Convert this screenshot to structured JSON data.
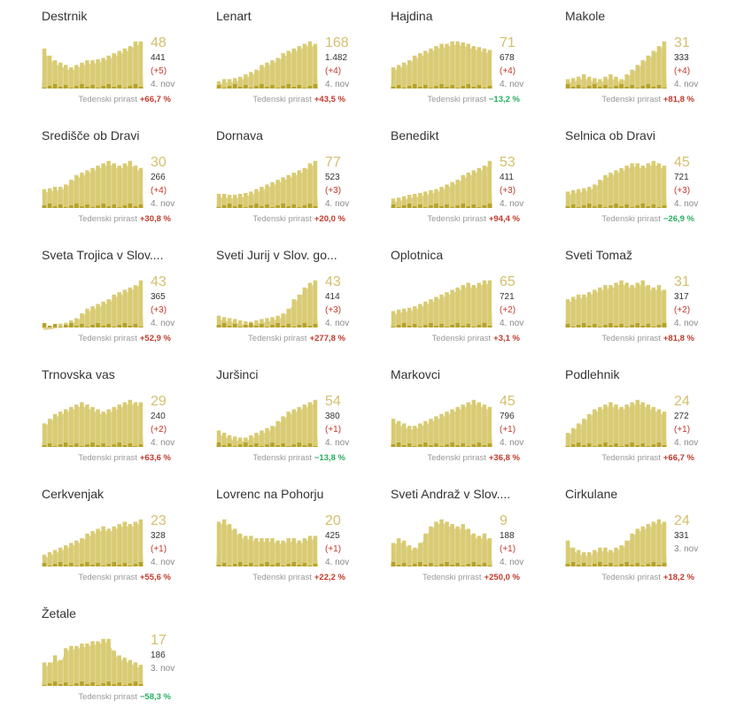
{
  "growth_label": "Tedenski prirast",
  "colors": {
    "area": "#d5c56f",
    "bar": "#d8cb72",
    "newbar": "#b5a22b",
    "up": "#c0392b",
    "down": "#27ae60",
    "big": "#d4bf6e"
  },
  "chart_data": [
    {
      "type": "bar",
      "name": "Destrnik",
      "active": "48",
      "total": "441",
      "delta": "(+5)",
      "date": "4. nov",
      "growth": "+66,7 %",
      "trend": "up",
      "values": [
        0.85,
        0.7,
        0.6,
        0.55,
        0.5,
        0.45,
        0.5,
        0.55,
        0.6,
        0.6,
        0.62,
        0.65,
        0.7,
        0.75,
        0.8,
        0.85,
        0.9,
        1.0,
        1.0
      ]
    },
    {
      "type": "bar",
      "name": "Lenart",
      "active": "168",
      "total": "1.482",
      "delta": "(+4)",
      "date": "4. nov",
      "growth": "+43,5 %",
      "trend": "up",
      "values": [
        0.15,
        0.2,
        0.2,
        0.22,
        0.25,
        0.3,
        0.35,
        0.4,
        0.5,
        0.55,
        0.6,
        0.65,
        0.75,
        0.8,
        0.85,
        0.9,
        0.95,
        1.0,
        0.95
      ]
    },
    {
      "type": "bar",
      "name": "Hajdina",
      "active": "71",
      "total": "678",
      "delta": "(+4)",
      "date": "4. nov",
      "growth": "−13,2 %",
      "trend": "down",
      "values": [
        0.45,
        0.5,
        0.55,
        0.6,
        0.7,
        0.75,
        0.8,
        0.85,
        0.9,
        0.95,
        0.95,
        1.0,
        1.0,
        0.98,
        0.95,
        0.9,
        0.88,
        0.85,
        0.82
      ]
    },
    {
      "type": "bar",
      "name": "Makole",
      "active": "31",
      "total": "333",
      "delta": "(+4)",
      "date": "4. nov",
      "growth": "+81,8 %",
      "trend": "up",
      "values": [
        0.2,
        0.22,
        0.25,
        0.3,
        0.25,
        0.22,
        0.2,
        0.25,
        0.3,
        0.25,
        0.2,
        0.3,
        0.4,
        0.5,
        0.6,
        0.7,
        0.8,
        0.9,
        1.0
      ]
    },
    {
      "type": "bar",
      "name": "Središče ob Dravi",
      "active": "30",
      "total": "266",
      "delta": "(+4)",
      "date": "4. nov",
      "growth": "+30,8 %",
      "trend": "up",
      "values": [
        0.4,
        0.42,
        0.45,
        0.45,
        0.5,
        0.6,
        0.7,
        0.75,
        0.8,
        0.85,
        0.9,
        0.95,
        1.0,
        0.95,
        0.9,
        0.95,
        1.0,
        0.9,
        0.85
      ]
    },
    {
      "type": "bar",
      "name": "Dornava",
      "active": "77",
      "total": "523",
      "delta": "(+3)",
      "date": "4. nov",
      "growth": "+20,0 %",
      "trend": "up",
      "values": [
        0.3,
        0.3,
        0.28,
        0.28,
        0.3,
        0.32,
        0.35,
        0.4,
        0.45,
        0.5,
        0.55,
        0.6,
        0.65,
        0.7,
        0.75,
        0.8,
        0.85,
        0.95,
        1.0
      ]
    },
    {
      "type": "bar",
      "name": "Benedikt",
      "active": "53",
      "total": "411",
      "delta": "(+3)",
      "date": "4. nov",
      "growth": "+94,4 %",
      "trend": "up",
      "values": [
        0.2,
        0.22,
        0.25,
        0.28,
        0.3,
        0.32,
        0.35,
        0.38,
        0.4,
        0.45,
        0.5,
        0.55,
        0.6,
        0.7,
        0.75,
        0.8,
        0.85,
        0.9,
        1.0
      ]
    },
    {
      "type": "bar",
      "name": "Selnica ob Dravi",
      "active": "45",
      "total": "721",
      "delta": "(+3)",
      "date": "4. nov",
      "growth": "−26,9 %",
      "trend": "down",
      "values": [
        0.35,
        0.38,
        0.4,
        0.42,
        0.45,
        0.5,
        0.6,
        0.7,
        0.75,
        0.8,
        0.85,
        0.9,
        0.95,
        0.95,
        0.9,
        0.95,
        1.0,
        0.95,
        0.9
      ]
    },
    {
      "type": "bar",
      "name": "Sveta Trojica v Slov....",
      "active": "43",
      "total": "365",
      "delta": "(+3)",
      "date": "4. nov",
      "growth": "+52,9 %",
      "trend": "up",
      "values": [
        0.02,
        0.03,
        0.05,
        0.08,
        0.1,
        0.15,
        0.2,
        0.3,
        0.4,
        0.45,
        0.5,
        0.55,
        0.6,
        0.7,
        0.75,
        0.8,
        0.85,
        0.9,
        1.0
      ]
    },
    {
      "type": "bar",
      "name": "Sveti Jurij v Slov. go...",
      "active": "43",
      "total": "414",
      "delta": "(+3)",
      "date": "4. nov",
      "growth": "+277,8 %",
      "trend": "up",
      "values": [
        0.25,
        0.22,
        0.2,
        0.18,
        0.15,
        0.13,
        0.12,
        0.15,
        0.18,
        0.2,
        0.22,
        0.25,
        0.3,
        0.4,
        0.6,
        0.7,
        0.85,
        0.95,
        1.0
      ]
    },
    {
      "type": "bar",
      "name": "Oplotnica",
      "active": "65",
      "total": "721",
      "delta": "(+2)",
      "date": "4. nov",
      "growth": "+3,1 %",
      "trend": "up",
      "values": [
        0.35,
        0.38,
        0.4,
        0.42,
        0.45,
        0.5,
        0.55,
        0.6,
        0.65,
        0.7,
        0.75,
        0.8,
        0.85,
        0.9,
        0.95,
        0.9,
        0.95,
        1.0,
        1.0
      ]
    },
    {
      "type": "bar",
      "name": "Sveti Tomaž",
      "active": "31",
      "total": "317",
      "delta": "(+2)",
      "date": "4. nov",
      "growth": "+81,8 %",
      "trend": "up",
      "values": [
        0.6,
        0.65,
        0.7,
        0.7,
        0.75,
        0.8,
        0.85,
        0.9,
        0.9,
        0.95,
        1.0,
        0.95,
        0.9,
        0.95,
        1.0,
        0.9,
        0.85,
        0.9,
        0.8
      ]
    },
    {
      "type": "bar",
      "name": "Trnovska vas",
      "active": "29",
      "total": "240",
      "delta": "(+2)",
      "date": "4. nov",
      "growth": "+63,6 %",
      "trend": "up",
      "values": [
        0.5,
        0.6,
        0.7,
        0.75,
        0.8,
        0.85,
        0.9,
        0.95,
        0.9,
        0.85,
        0.8,
        0.75,
        0.8,
        0.85,
        0.9,
        0.95,
        1.0,
        0.95,
        0.95
      ]
    },
    {
      "type": "bar",
      "name": "Juršinci",
      "active": "54",
      "total": "380",
      "delta": "(+1)",
      "date": "4. nov",
      "growth": "−13,8 %",
      "trend": "down",
      "values": [
        0.35,
        0.3,
        0.25,
        0.22,
        0.2,
        0.2,
        0.25,
        0.3,
        0.35,
        0.4,
        0.45,
        0.55,
        0.65,
        0.75,
        0.8,
        0.85,
        0.9,
        0.95,
        1.0
      ]
    },
    {
      "type": "bar",
      "name": "Markovci",
      "active": "45",
      "total": "796",
      "delta": "(+1)",
      "date": "4. nov",
      "growth": "+36,8 %",
      "trend": "up",
      "values": [
        0.6,
        0.55,
        0.5,
        0.45,
        0.45,
        0.5,
        0.55,
        0.6,
        0.65,
        0.7,
        0.75,
        0.8,
        0.85,
        0.9,
        0.95,
        1.0,
        0.95,
        0.9,
        0.85
      ]
    },
    {
      "type": "bar",
      "name": "Podlehnik",
      "active": "24",
      "total": "272",
      "delta": "(+1)",
      "date": "4. nov",
      "growth": "+66,7 %",
      "trend": "up",
      "values": [
        0.3,
        0.4,
        0.5,
        0.6,
        0.7,
        0.8,
        0.85,
        0.9,
        0.95,
        0.9,
        0.85,
        0.9,
        0.95,
        1.0,
        0.95,
        0.9,
        0.85,
        0.8,
        0.75
      ]
    },
    {
      "type": "bar",
      "name": "Cerkvenjak",
      "active": "23",
      "total": "328",
      "delta": "(+1)",
      "date": "4. nov",
      "growth": "+55,6 %",
      "trend": "up",
      "values": [
        0.25,
        0.3,
        0.35,
        0.4,
        0.45,
        0.5,
        0.55,
        0.6,
        0.7,
        0.75,
        0.8,
        0.85,
        0.8,
        0.85,
        0.9,
        0.95,
        0.9,
        0.95,
        1.0
      ]
    },
    {
      "type": "bar",
      "name": "Lovrenc na Pohorju",
      "active": "20",
      "total": "425",
      "delta": "(+1)",
      "date": "4. nov",
      "growth": "+22,2 %",
      "trend": "up",
      "values": [
        0.95,
        1.0,
        0.9,
        0.8,
        0.7,
        0.65,
        0.65,
        0.6,
        0.6,
        0.6,
        0.6,
        0.55,
        0.55,
        0.6,
        0.6,
        0.55,
        0.6,
        0.65,
        0.65
      ]
    },
    {
      "type": "bar",
      "name": "Sveti Andraž v Slov....",
      "active": "9",
      "total": "188",
      "delta": "(+1)",
      "date": "4. nov",
      "growth": "+250,0 %",
      "trend": "up",
      "values": [
        0.5,
        0.6,
        0.55,
        0.45,
        0.4,
        0.5,
        0.7,
        0.85,
        0.95,
        1.0,
        0.95,
        0.9,
        0.85,
        0.9,
        0.8,
        0.7,
        0.65,
        0.7,
        0.6
      ]
    },
    {
      "type": "bar",
      "name": "Cirkulane",
      "active": "24",
      "total": "331",
      "delta": "",
      "date": "3. nov",
      "growth": "+18,2 %",
      "trend": "up",
      "values": [
        0.55,
        0.4,
        0.35,
        0.3,
        0.3,
        0.35,
        0.4,
        0.4,
        0.35,
        0.4,
        0.45,
        0.55,
        0.7,
        0.8,
        0.85,
        0.9,
        0.95,
        1.0,
        0.95
      ]
    },
    {
      "type": "bar",
      "name": "Žetale",
      "active": "17",
      "total": "186",
      "delta": "",
      "date": "3. nov",
      "growth": "−58,3 %",
      "trend": "down",
      "values": [
        0.5,
        0.5,
        0.65,
        0.55,
        0.8,
        0.85,
        0.85,
        0.9,
        0.9,
        0.95,
        0.95,
        1.0,
        1.0,
        0.75,
        0.65,
        0.6,
        0.55,
        0.5,
        0.45
      ]
    }
  ]
}
